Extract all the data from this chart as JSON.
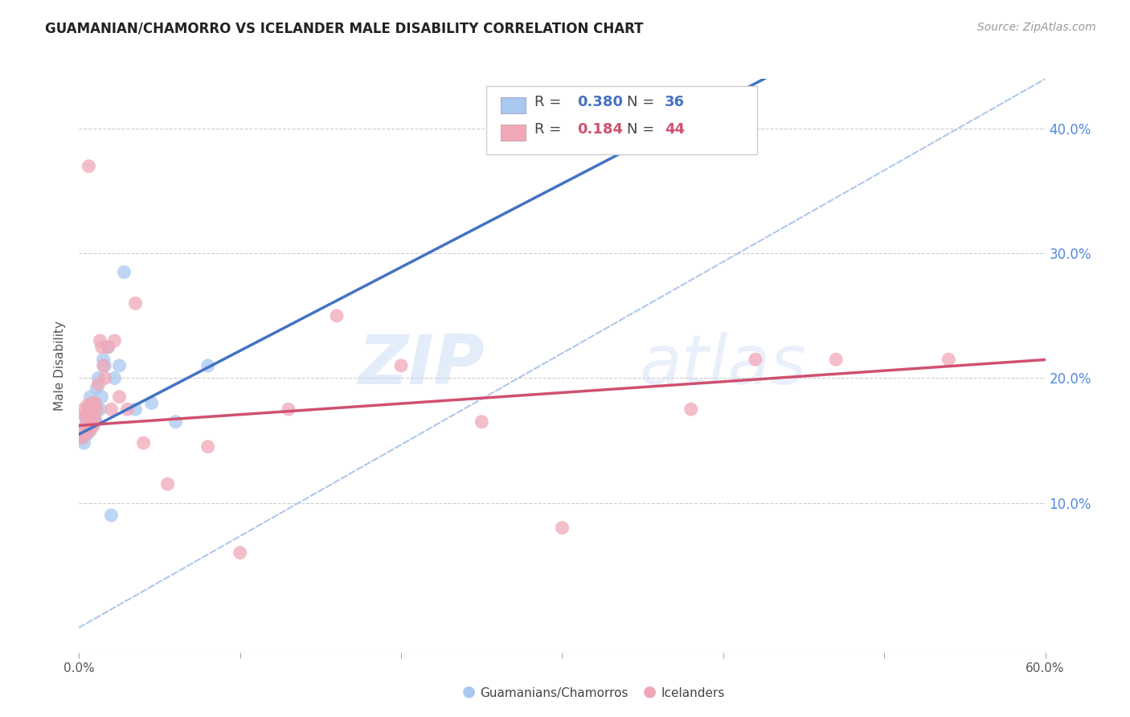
{
  "title": "GUAMANIAN/CHAMORRO VS ICELANDER MALE DISABILITY CORRELATION CHART",
  "source": "Source: ZipAtlas.com",
  "ylabel": "Male Disability",
  "xlim": [
    0.0,
    0.6
  ],
  "ylim": [
    -0.02,
    0.44
  ],
  "yticks": [
    0.1,
    0.2,
    0.3,
    0.4
  ],
  "ytick_labels": [
    "10.0%",
    "20.0%",
    "30.0%",
    "40.0%"
  ],
  "background_color": "#ffffff",
  "watermark_zip": "ZIP",
  "watermark_atlas": "atlas",
  "legend_r_blue": "0.380",
  "legend_n_blue": "36",
  "legend_r_pink": "0.184",
  "legend_n_pink": "44",
  "blue_color": "#a8c8f0",
  "pink_color": "#f0a8b8",
  "trend_blue": "#4472c4",
  "trend_pink": "#d05070",
  "trend_dash_color": "#b0c8e8",
  "guamanian_x": [
    0.002,
    0.003,
    0.003,
    0.004,
    0.004,
    0.004,
    0.005,
    0.005,
    0.005,
    0.005,
    0.006,
    0.006,
    0.006,
    0.007,
    0.007,
    0.008,
    0.008,
    0.009,
    0.009,
    0.01,
    0.01,
    0.011,
    0.012,
    0.013,
    0.014,
    0.015,
    0.016,
    0.018,
    0.02,
    0.022,
    0.025,
    0.028,
    0.035,
    0.045,
    0.06,
    0.08
  ],
  "guamanian_y": [
    0.152,
    0.148,
    0.158,
    0.155,
    0.162,
    0.168,
    0.155,
    0.16,
    0.165,
    0.17,
    0.158,
    0.165,
    0.172,
    0.178,
    0.185,
    0.162,
    0.175,
    0.168,
    0.18,
    0.165,
    0.178,
    0.192,
    0.2,
    0.175,
    0.185,
    0.215,
    0.21,
    0.225,
    0.09,
    0.2,
    0.21,
    0.285,
    0.175,
    0.18,
    0.165,
    0.21
  ],
  "icelander_x": [
    0.002,
    0.003,
    0.003,
    0.004,
    0.004,
    0.005,
    0.005,
    0.005,
    0.006,
    0.006,
    0.006,
    0.007,
    0.007,
    0.008,
    0.008,
    0.009,
    0.009,
    0.01,
    0.01,
    0.011,
    0.012,
    0.013,
    0.014,
    0.015,
    0.016,
    0.018,
    0.02,
    0.022,
    0.025,
    0.03,
    0.035,
    0.04,
    0.055,
    0.08,
    0.1,
    0.13,
    0.16,
    0.2,
    0.25,
    0.3,
    0.38,
    0.42,
    0.47,
    0.54
  ],
  "icelander_y": [
    0.152,
    0.155,
    0.175,
    0.16,
    0.17,
    0.165,
    0.17,
    0.178,
    0.162,
    0.175,
    0.37,
    0.158,
    0.172,
    0.165,
    0.18,
    0.162,
    0.178,
    0.168,
    0.18,
    0.175,
    0.195,
    0.23,
    0.225,
    0.21,
    0.2,
    0.225,
    0.175,
    0.23,
    0.185,
    0.175,
    0.26,
    0.148,
    0.115,
    0.145,
    0.06,
    0.175,
    0.25,
    0.21,
    0.165,
    0.08,
    0.175,
    0.215,
    0.215,
    0.215
  ]
}
